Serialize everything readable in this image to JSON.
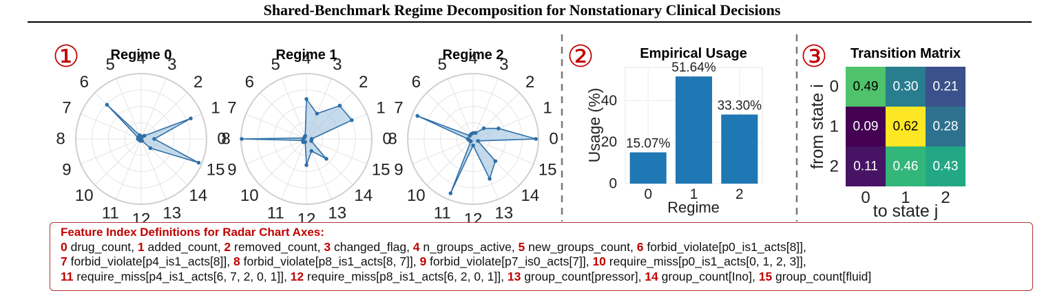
{
  "title": "Shared-Benchmark Regime Decomposition for Nonstationary Clinical Decisions",
  "panel_markers": [
    "①",
    "②",
    "③"
  ],
  "chart_data": [
    {
      "type": "radar",
      "title": "Regime 0",
      "axes": [
        "0",
        "1",
        "2",
        "3",
        "4",
        "5",
        "6",
        "7",
        "8",
        "9",
        "10",
        "11",
        "12",
        "13",
        "14",
        "15"
      ],
      "range": [
        0,
        1
      ],
      "values": [
        0.2,
        0.82,
        0.07,
        0.03,
        0.04,
        0.06,
        0.74,
        0.05,
        0.05,
        0.03,
        0.03,
        0.03,
        0.03,
        0.03,
        0.2,
        0.95
      ],
      "color": "#2f6fa8"
    },
    {
      "type": "radar",
      "title": "Regime 1",
      "axes": [
        "0",
        "1",
        "2",
        "3",
        "4",
        "5",
        "6",
        "7",
        "8",
        "9",
        "10",
        "11",
        "12",
        "13",
        "14",
        "15"
      ],
      "range": [
        0,
        1
      ],
      "values": [
        0.08,
        0.75,
        0.72,
        0.42,
        0.61,
        0.05,
        0.04,
        0.04,
        0.99,
        0.06,
        0.07,
        0.05,
        0.4,
        0.2,
        0.43,
        0.08
      ],
      "color": "#2f6fa8"
    },
    {
      "type": "radar",
      "title": "Regime 2",
      "axes": [
        "0",
        "1",
        "2",
        "3",
        "4",
        "5",
        "6",
        "7",
        "8",
        "9",
        "10",
        "11",
        "12",
        "13",
        "14",
        "15"
      ],
      "range": [
        0,
        1
      ],
      "values": [
        0.96,
        0.42,
        0.23,
        0.1,
        0.09,
        0.08,
        0.07,
        0.92,
        0.08,
        0.06,
        0.05,
        0.9,
        0.1,
        0.66,
        0.48,
        0.08
      ],
      "color": "#2f6fa8"
    },
    {
      "type": "bar",
      "title": "Empirical Usage",
      "categories": [
        "0",
        "1",
        "2"
      ],
      "values": [
        15.07,
        51.64,
        33.3
      ],
      "data_labels": [
        "15.07%",
        "51.64%",
        "33.30%"
      ],
      "xlabel": "Regime",
      "ylabel": "Usage (%)",
      "yticks": [
        0,
        20,
        40
      ],
      "ylim": [
        0,
        56
      ],
      "color": "#1f77b4",
      "grid": true
    },
    {
      "type": "heatmap",
      "title": "Transition Matrix",
      "xlabel": "to state j",
      "ylabel": "from state i",
      "row_labels": [
        "0",
        "1",
        "2"
      ],
      "col_labels": [
        "0",
        "1",
        "2"
      ],
      "values": [
        [
          0.49,
          0.3,
          0.21
        ],
        [
          0.09,
          0.62,
          0.28
        ],
        [
          0.11,
          0.46,
          0.43
        ]
      ],
      "labels": [
        [
          "0.49",
          "0.30",
          "0.21"
        ],
        [
          "0.09",
          "0.62",
          "0.28"
        ],
        [
          "0.11",
          "0.46",
          "0.43"
        ]
      ],
      "colors": [
        [
          "#4ec36b",
          "#287d8e",
          "#3b518b"
        ],
        [
          "#440154",
          "#fde725",
          "#2d718e"
        ],
        [
          "#471365",
          "#32b67a",
          "#22a884"
        ]
      ],
      "text_colors": [
        [
          "#000000",
          "#ffffff",
          "#ffffff"
        ],
        [
          "#ffffff",
          "#000000",
          "#ffffff"
        ],
        [
          "#ffffff",
          "#ffffff",
          "#ffffff"
        ]
      ]
    }
  ],
  "definitions": {
    "title": "Feature Index Definitions for Radar Chart Axes:",
    "lines": [
      [
        {
          "index": "0",
          "text": " drug_count, "
        },
        {
          "index": "1",
          "text": " added_count, "
        },
        {
          "index": "2",
          "text": " removed_count, "
        },
        {
          "index": "3",
          "text": " changed_flag, "
        },
        {
          "index": "4",
          "text": " n_groups_active, "
        },
        {
          "index": "5",
          "text": " new_groups_count, "
        },
        {
          "index": "6",
          "text": " forbid_violate[p0_is1_acts[8]],"
        }
      ],
      [
        {
          "index": "7",
          "text": " forbid_violate[p4_is1_acts[8]], "
        },
        {
          "index": "8",
          "text": " forbid_violate[p8_is1_acts[8, 7]], "
        },
        {
          "index": "9",
          "text": " forbid_violate[p7_is0_acts[7]], "
        },
        {
          "index": "10",
          "text": " require_miss[p0_is1_acts[0, 1, 2, 3]],"
        }
      ],
      [
        {
          "index": "11",
          "text": " require_miss[p4_is1_acts[6, 7, 2, 0, 1]], "
        },
        {
          "index": "12",
          "text": " require_miss[p8_is1_acts[6, 2, 0, 1]], "
        },
        {
          "index": "13",
          "text": " group_count[pressor], "
        },
        {
          "index": "14",
          "text": " group_count[Ino], "
        },
        {
          "index": "15",
          "text": " group_count[fluid]"
        }
      ]
    ]
  }
}
